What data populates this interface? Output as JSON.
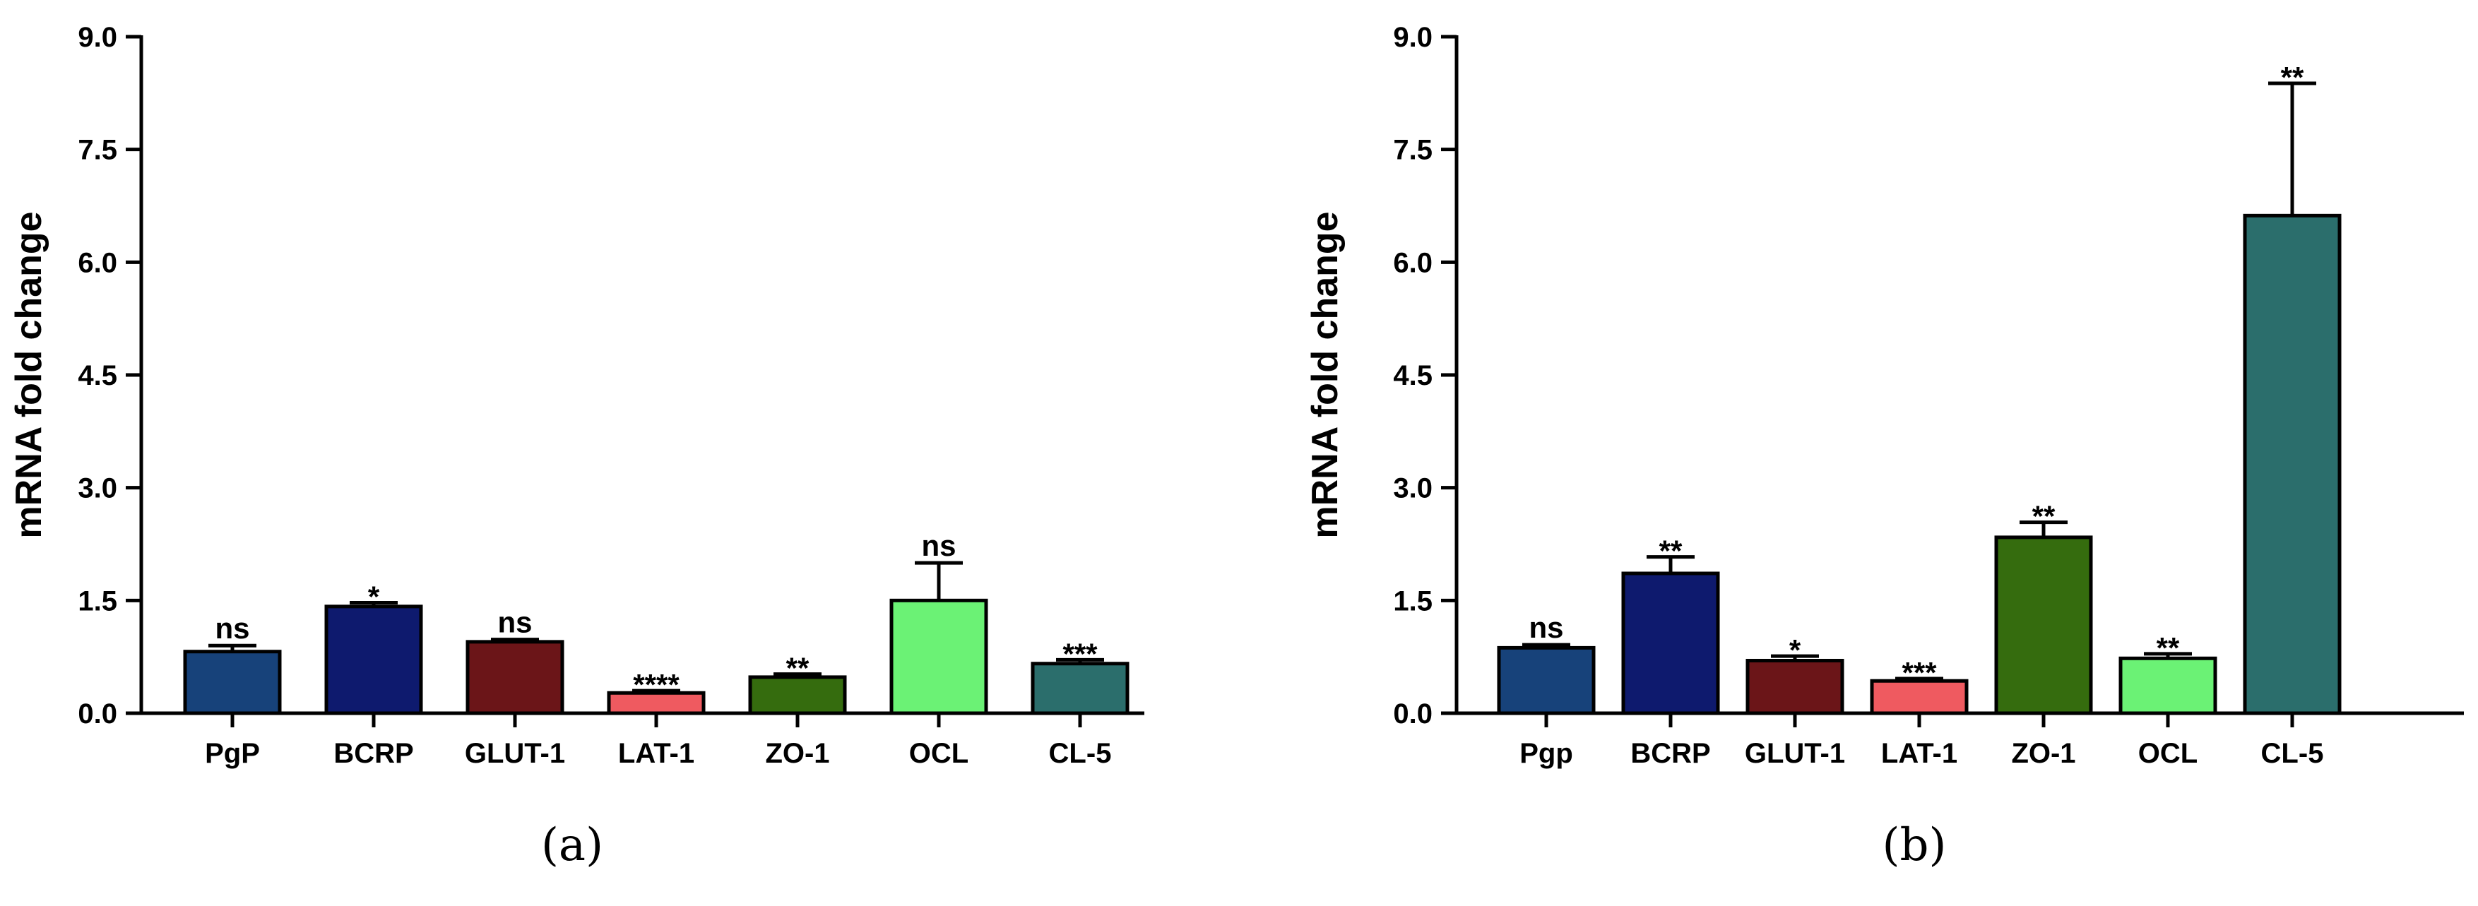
{
  "chart_data": [
    {
      "type": "bar",
      "panel_label": "(a)",
      "ylabel": "mRNA fold change",
      "ylim": [
        0,
        9.0
      ],
      "yticks": [
        "0.0",
        "1.5",
        "3.0",
        "4.5",
        "6.0",
        "7.5",
        "9.0"
      ],
      "categories": [
        "PgP",
        "BCRP",
        "GLUT-1",
        "LAT-1",
        "ZO-1",
        "OCL",
        "CL-5"
      ],
      "values": [
        0.82,
        1.42,
        0.95,
        0.27,
        0.48,
        1.5,
        0.66
      ],
      "errors": [
        0.08,
        0.05,
        0.03,
        0.03,
        0.04,
        0.5,
        0.05
      ],
      "significance": [
        "ns",
        "*",
        "ns",
        "****",
        "**",
        "ns",
        "***"
      ],
      "colors": [
        "#17427A",
        "#0E1A6E",
        "#6B1518",
        "#EF5A60",
        "#356C0E",
        "#6BF275",
        "#2B6E6C"
      ],
      "grid": false,
      "legend": "none"
    },
    {
      "type": "bar",
      "panel_label": "(b)",
      "ylabel": "mRNA fold change",
      "ylim": [
        0,
        9.0
      ],
      "yticks": [
        "0.0",
        "1.5",
        "3.0",
        "4.5",
        "6.0",
        "7.5",
        "9.0"
      ],
      "categories": [
        "Pgp",
        "BCRP",
        "GLUT-1",
        "LAT-1",
        "ZO-1",
        "OCL",
        "CL-5"
      ],
      "values": [
        0.87,
        1.86,
        0.7,
        0.43,
        2.34,
        0.73,
        6.62
      ],
      "errors": [
        0.04,
        0.22,
        0.06,
        0.03,
        0.2,
        0.06,
        1.76
      ],
      "significance": [
        "ns",
        "**",
        "*",
        "***",
        "**",
        "**",
        "**"
      ],
      "colors": [
        "#17427A",
        "#0E1A6E",
        "#6B1518",
        "#EF5A60",
        "#356C0E",
        "#6BF275",
        "#2B6E6C"
      ],
      "grid": false,
      "legend": "none"
    }
  ]
}
